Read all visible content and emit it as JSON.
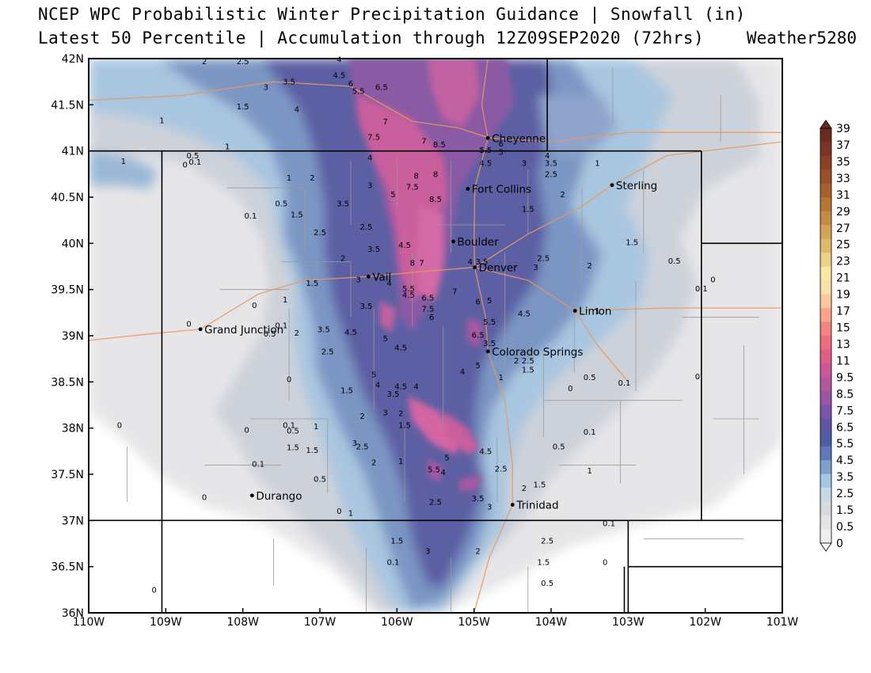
{
  "title": {
    "line1": "NCEP WPC Probabilistic Winter Precipitation Guidance | Snowfall (in)",
    "line2": "Latest 50 Percentile | Accumulation through 12Z09SEP2020 (72hrs)",
    "credit": "Weather5280"
  },
  "map": {
    "lon_range": [
      -110,
      -101
    ],
    "lat_range": [
      36,
      42
    ],
    "x_ticks": [
      "110W",
      "109W",
      "108W",
      "107W",
      "106W",
      "105W",
      "104W",
      "103W",
      "102W",
      "101W"
    ],
    "y_ticks": [
      "36N",
      "36.5N",
      "37N",
      "37.5N",
      "38N",
      "38.5N",
      "39N",
      "39.5N",
      "40N",
      "40.5N",
      "41N",
      "41.5N",
      "42N"
    ],
    "cities": [
      {
        "name": "Cheyenne",
        "lon": -104.82,
        "lat": 41.14
      },
      {
        "name": "Fort Collins",
        "lon": -105.08,
        "lat": 40.59
      },
      {
        "name": "Sterling",
        "lon": -103.21,
        "lat": 40.63
      },
      {
        "name": "Boulder",
        "lon": -105.27,
        "lat": 40.02
      },
      {
        "name": "Denver",
        "lon": -104.99,
        "lat": 39.74
      },
      {
        "name": "Vail",
        "lon": -106.37,
        "lat": 39.64
      },
      {
        "name": "Limon",
        "lon": -103.69,
        "lat": 39.27
      },
      {
        "name": "Grand Junction",
        "lon": -108.55,
        "lat": 39.07
      },
      {
        "name": "Colorado Springs",
        "lon": -104.82,
        "lat": 38.83
      },
      {
        "name": "Durango",
        "lon": -107.88,
        "lat": 37.27
      },
      {
        "name": "Trinidad",
        "lon": -104.5,
        "lat": 37.17
      }
    ],
    "contour_labels": [
      {
        "t": "2",
        "lon": -108.5,
        "lat": 41.94
      },
      {
        "t": "2.5",
        "lon": -108.0,
        "lat": 41.94
      },
      {
        "t": "4",
        "lon": -106.75,
        "lat": 41.96
      },
      {
        "t": "3",
        "lon": -107.7,
        "lat": 41.66
      },
      {
        "t": "3.5",
        "lon": -107.4,
        "lat": 41.72
      },
      {
        "t": "4.5",
        "lon": -106.75,
        "lat": 41.79
      },
      {
        "t": "6",
        "lon": -106.6,
        "lat": 41.7
      },
      {
        "t": "5.5",
        "lon": -106.5,
        "lat": 41.62
      },
      {
        "t": "6.5",
        "lon": -106.2,
        "lat": 41.66
      },
      {
        "t": "1.5",
        "lon": -108.0,
        "lat": 41.45
      },
      {
        "t": "4",
        "lon": -107.3,
        "lat": 41.42
      },
      {
        "t": "1",
        "lon": -109.05,
        "lat": 41.3
      },
      {
        "t": "7",
        "lon": -106.15,
        "lat": 41.29
      },
      {
        "t": "7.5",
        "lon": -106.3,
        "lat": 41.12
      },
      {
        "t": "7",
        "lon": -105.65,
        "lat": 41.08
      },
      {
        "t": "8.5",
        "lon": -105.45,
        "lat": 41.04
      },
      {
        "t": "1",
        "lon": -108.2,
        "lat": 41.02
      },
      {
        "t": "1",
        "lon": -109.55,
        "lat": 40.86
      },
      {
        "t": "0.5",
        "lon": -108.65,
        "lat": 40.92
      },
      {
        "t": "0",
        "lon": -108.75,
        "lat": 40.82
      },
      {
        "t": "0.1",
        "lon": -108.62,
        "lat": 40.85
      },
      {
        "t": "1",
        "lon": -107.4,
        "lat": 40.68
      },
      {
        "t": "2",
        "lon": -107.1,
        "lat": 40.68
      },
      {
        "t": "4",
        "lon": -106.35,
        "lat": 40.9
      },
      {
        "t": "3",
        "lon": -106.35,
        "lat": 40.6
      },
      {
        "t": "5",
        "lon": -106.05,
        "lat": 40.5
      },
      {
        "t": "7.5",
        "lon": -105.8,
        "lat": 40.58
      },
      {
        "t": "8",
        "lon": -105.75,
        "lat": 40.7
      },
      {
        "t": "8",
        "lon": -105.5,
        "lat": 40.72
      },
      {
        "t": "8.5",
        "lon": -105.5,
        "lat": 40.45
      },
      {
        "t": "5.5",
        "lon": -104.85,
        "lat": 40.98
      },
      {
        "t": "5",
        "lon": -104.65,
        "lat": 40.96
      },
      {
        "t": "6",
        "lon": -104.65,
        "lat": 41.05
      },
      {
        "t": "4.5",
        "lon": -104.85,
        "lat": 40.84
      },
      {
        "t": "3",
        "lon": -104.35,
        "lat": 40.84
      },
      {
        "t": "4",
        "lon": -104.05,
        "lat": 40.92
      },
      {
        "t": "3.5",
        "lon": -104.0,
        "lat": 40.84
      },
      {
        "t": "2.5",
        "lon": -104.0,
        "lat": 40.72
      },
      {
        "t": "1",
        "lon": -103.4,
        "lat": 40.84
      },
      {
        "t": "2",
        "lon": -103.85,
        "lat": 40.5
      },
      {
        "t": "1.5",
        "lon": -104.3,
        "lat": 40.34
      },
      {
        "t": "0.5",
        "lon": -107.5,
        "lat": 40.4
      },
      {
        "t": "1.5",
        "lon": -107.3,
        "lat": 40.28
      },
      {
        "t": "0.1",
        "lon": -107.9,
        "lat": 40.27
      },
      {
        "t": "3.5",
        "lon": -106.7,
        "lat": 40.4
      },
      {
        "t": "2.5",
        "lon": -106.4,
        "lat": 40.15
      },
      {
        "t": "2.5",
        "lon": -107.0,
        "lat": 40.09
      },
      {
        "t": "4.5",
        "lon": -105.9,
        "lat": 39.95
      },
      {
        "t": "3.5",
        "lon": -106.3,
        "lat": 39.91
      },
      {
        "t": "2",
        "lon": -106.7,
        "lat": 39.81
      },
      {
        "t": "8",
        "lon": -105.8,
        "lat": 39.76
      },
      {
        "t": "7",
        "lon": -105.68,
        "lat": 39.76
      },
      {
        "t": "4",
        "lon": -105.05,
        "lat": 39.77
      },
      {
        "t": "3.5",
        "lon": -104.9,
        "lat": 39.77
      },
      {
        "t": "2.5",
        "lon": -104.1,
        "lat": 39.81
      },
      {
        "t": "3",
        "lon": -104.2,
        "lat": 39.71
      },
      {
        "t": "2",
        "lon": -103.5,
        "lat": 39.73
      },
      {
        "t": "1.5",
        "lon": -102.95,
        "lat": 39.98
      },
      {
        "t": "0.5",
        "lon": -102.4,
        "lat": 39.78
      },
      {
        "t": "0",
        "lon": -101.9,
        "lat": 39.58
      },
      {
        "t": "0.1",
        "lon": -102.05,
        "lat": 39.48
      },
      {
        "t": "1.5",
        "lon": -107.1,
        "lat": 39.54
      },
      {
        "t": "3",
        "lon": -106.5,
        "lat": 39.58
      },
      {
        "t": "4",
        "lon": -106.1,
        "lat": 39.54
      },
      {
        "t": "5.5",
        "lon": -105.85,
        "lat": 39.48
      },
      {
        "t": "4.5",
        "lon": -105.85,
        "lat": 39.41
      },
      {
        "t": "6.5",
        "lon": -105.6,
        "lat": 39.38
      },
      {
        "t": "7",
        "lon": -105.25,
        "lat": 39.45
      },
      {
        "t": "6",
        "lon": -104.95,
        "lat": 39.34
      },
      {
        "t": "5",
        "lon": -104.8,
        "lat": 39.35
      },
      {
        "t": "7.5",
        "lon": -105.6,
        "lat": 39.26
      },
      {
        "t": "6",
        "lon": -105.55,
        "lat": 39.17
      },
      {
        "t": "4.5",
        "lon": -104.35,
        "lat": 39.21
      },
      {
        "t": "1",
        "lon": -103.4,
        "lat": 39.24
      },
      {
        "t": "0",
        "lon": -107.85,
        "lat": 39.3
      },
      {
        "t": "1",
        "lon": -107.45,
        "lat": 39.36
      },
      {
        "t": "3.5",
        "lon": -106.4,
        "lat": 39.29
      },
      {
        "t": "0",
        "lon": -108.7,
        "lat": 39.1
      },
      {
        "t": "0.1",
        "lon": -107.5,
        "lat": 39.08
      },
      {
        "t": "0.5",
        "lon": -107.65,
        "lat": 38.99
      },
      {
        "t": "2",
        "lon": -107.3,
        "lat": 39.0
      },
      {
        "t": "3.5",
        "lon": -106.95,
        "lat": 39.04
      },
      {
        "t": "4.5",
        "lon": -106.6,
        "lat": 39.01
      },
      {
        "t": "5",
        "lon": -106.15,
        "lat": 38.94
      },
      {
        "t": "4.5",
        "lon": -105.95,
        "lat": 38.84
      },
      {
        "t": "5.5",
        "lon": -104.8,
        "lat": 39.12
      },
      {
        "t": "6.5",
        "lon": -104.95,
        "lat": 38.98
      },
      {
        "t": "3.5",
        "lon": -104.8,
        "lat": 38.89
      },
      {
        "t": "2.5",
        "lon": -106.9,
        "lat": 38.8
      },
      {
        "t": "5",
        "lon": -104.95,
        "lat": 38.65
      },
      {
        "t": "2",
        "lon": -104.45,
        "lat": 38.7
      },
      {
        "t": "2.5",
        "lon": -104.3,
        "lat": 38.7
      },
      {
        "t": "1.5",
        "lon": -104.3,
        "lat": 38.6
      },
      {
        "t": "4",
        "lon": -105.15,
        "lat": 38.58
      },
      {
        "t": "1",
        "lon": -104.65,
        "lat": 38.52
      },
      {
        "t": "0.5",
        "lon": -103.5,
        "lat": 38.52
      },
      {
        "t": "0.1",
        "lon": -103.05,
        "lat": 38.46
      },
      {
        "t": "0",
        "lon": -102.1,
        "lat": 38.53
      },
      {
        "t": "0",
        "lon": -107.4,
        "lat": 38.5
      },
      {
        "t": "5",
        "lon": -106.3,
        "lat": 38.55
      },
      {
        "t": "4",
        "lon": -106.25,
        "lat": 38.44
      },
      {
        "t": "4.5",
        "lon": -105.95,
        "lat": 38.42
      },
      {
        "t": "4",
        "lon": -105.75,
        "lat": 38.42
      },
      {
        "t": "3.5",
        "lon": -106.05,
        "lat": 38.34
      },
      {
        "t": "1.5",
        "lon": -106.65,
        "lat": 38.38
      },
      {
        "t": "0",
        "lon": -103.75,
        "lat": 38.4
      },
      {
        "t": "3",
        "lon": -106.15,
        "lat": 38.14
      },
      {
        "t": "2",
        "lon": -105.95,
        "lat": 38.13
      },
      {
        "t": "2",
        "lon": -106.45,
        "lat": 38.1
      },
      {
        "t": "1.5",
        "lon": -105.9,
        "lat": 38.0
      },
      {
        "t": "0",
        "lon": -109.6,
        "lat": 38.0
      },
      {
        "t": "0",
        "lon": -107.95,
        "lat": 37.95
      },
      {
        "t": "0.1",
        "lon": -107.4,
        "lat": 38.0
      },
      {
        "t": "0.5",
        "lon": -107.35,
        "lat": 37.94
      },
      {
        "t": "1",
        "lon": -107.05,
        "lat": 37.99
      },
      {
        "t": "0.1",
        "lon": -103.5,
        "lat": 37.93
      },
      {
        "t": "0.5",
        "lon": -103.9,
        "lat": 37.77
      },
      {
        "t": "3",
        "lon": -106.55,
        "lat": 37.81
      },
      {
        "t": "2.5",
        "lon": -106.45,
        "lat": 37.77
      },
      {
        "t": "1.5",
        "lon": -107.35,
        "lat": 37.76
      },
      {
        "t": "1.5",
        "lon": -107.1,
        "lat": 37.73
      },
      {
        "t": "4.5",
        "lon": -104.85,
        "lat": 37.72
      },
      {
        "t": "2",
        "lon": -106.3,
        "lat": 37.6
      },
      {
        "t": "1",
        "lon": -105.95,
        "lat": 37.61
      },
      {
        "t": "5",
        "lon": -105.35,
        "lat": 37.65
      },
      {
        "t": "0.1",
        "lon": -107.8,
        "lat": 37.58
      },
      {
        "t": "5.5",
        "lon": -105.52,
        "lat": 37.52
      },
      {
        "t": "4",
        "lon": -105.4,
        "lat": 37.49
      },
      {
        "t": "2.5",
        "lon": -104.65,
        "lat": 37.53
      },
      {
        "t": "1",
        "lon": -103.5,
        "lat": 37.51
      },
      {
        "t": "0.5",
        "lon": -107.0,
        "lat": 37.42
      },
      {
        "t": "2",
        "lon": -104.35,
        "lat": 37.32
      },
      {
        "t": "1.5",
        "lon": -104.15,
        "lat": 37.36
      },
      {
        "t": "0",
        "lon": -108.5,
        "lat": 37.22
      },
      {
        "t": "2.5",
        "lon": -105.5,
        "lat": 37.17
      },
      {
        "t": "3.5",
        "lon": -104.95,
        "lat": 37.21
      },
      {
        "t": "3",
        "lon": -104.8,
        "lat": 37.12
      },
      {
        "t": "0",
        "lon": -106.75,
        "lat": 37.07
      },
      {
        "t": "1",
        "lon": -106.6,
        "lat": 37.05
      },
      {
        "t": "0.1",
        "lon": -103.25,
        "lat": 36.94
      },
      {
        "t": "1.5",
        "lon": -106.0,
        "lat": 36.75
      },
      {
        "t": "3",
        "lon": -105.6,
        "lat": 36.64
      },
      {
        "t": "2",
        "lon": -104.95,
        "lat": 36.64
      },
      {
        "t": "2.5",
        "lon": -104.05,
        "lat": 36.75
      },
      {
        "t": "0.1",
        "lon": -106.05,
        "lat": 36.52
      },
      {
        "t": "1.5",
        "lon": -104.1,
        "lat": 36.52
      },
      {
        "t": "0",
        "lon": -103.3,
        "lat": 36.52
      },
      {
        "t": "0.5",
        "lon": -104.05,
        "lat": 36.29
      },
      {
        "t": "0",
        "lon": -109.15,
        "lat": 36.22
      }
    ]
  },
  "colorbar": {
    "labels": [
      "39",
      "37",
      "35",
      "33",
      "31",
      "29",
      "27",
      "25",
      "23",
      "21",
      "19",
      "17",
      "15",
      "13",
      "11",
      "9.5",
      "8.5",
      "7.5",
      "6.5",
      "5.5",
      "4.5",
      "3.5",
      "2.5",
      "1.5",
      "0.5",
      "0"
    ],
    "colors": [
      "#6b2a20",
      "#7b3423",
      "#8c3f25",
      "#9b5029",
      "#a8612e",
      "#b67637",
      "#c48b45",
      "#d3a357",
      "#e0ba6b",
      "#ecd288",
      "#f8e9a6",
      "#fbe0ac",
      "#fcc79e",
      "#faa58b",
      "#f4857e",
      "#ec6e7e",
      "#e05d88",
      "#cd5796",
      "#b6569f",
      "#9a55a6",
      "#7b55a8",
      "#5f55a4",
      "#4d5ea4",
      "#5f78b6",
      "#7ea0cc",
      "#a5c6e2",
      "#c4dbe7",
      "#d7dbe0",
      "#e4e4e6",
      "#efefef"
    ]
  }
}
